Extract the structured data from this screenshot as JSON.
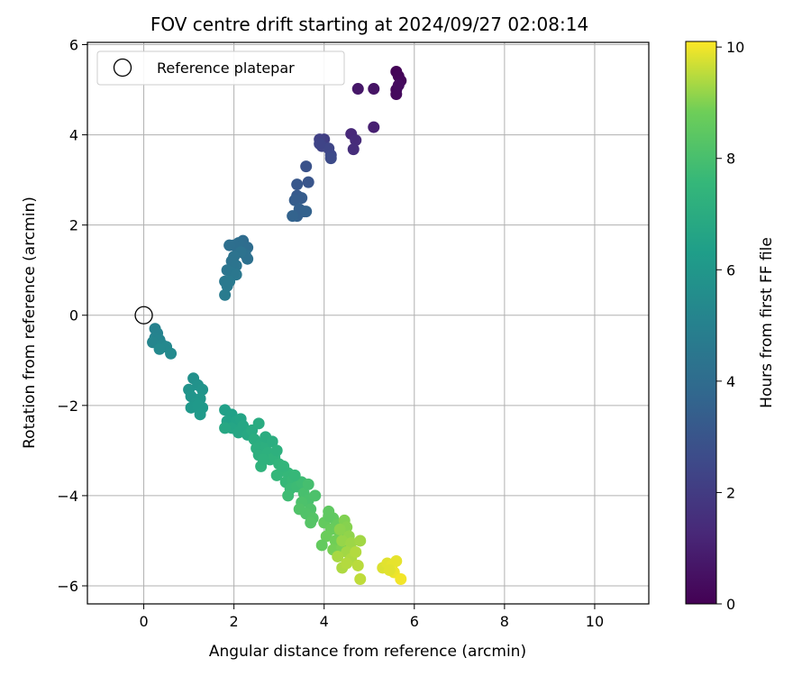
{
  "chart_data": {
    "type": "scatter",
    "title": "FOV centre drift starting at 2024/09/27 02:08:14",
    "xlabel": "Angular distance from reference (arcmin)",
    "ylabel": "Rotation from reference (arcmin)",
    "xlim": [
      -1.25,
      11.2
    ],
    "ylim": [
      -6.4,
      6.05
    ],
    "xticks": [
      0,
      2,
      4,
      6,
      8,
      10
    ],
    "yticks": [
      -6,
      -4,
      -2,
      0,
      2,
      4,
      6
    ],
    "grid": true,
    "legend": {
      "position": "upper-left",
      "entries": [
        {
          "label": "Reference platepar",
          "marker": "open-circle",
          "x": 0,
          "y": 0
        }
      ]
    },
    "colorbar": {
      "label": "Hours from first FF file",
      "range": [
        0,
        10.1
      ],
      "ticks": [
        0,
        2,
        4,
        6,
        8,
        10
      ],
      "colormap": "viridis"
    },
    "point_color_value": "hours",
    "points": [
      {
        "x": 5.6,
        "y": 5.4,
        "h": 0.1
      },
      {
        "x": 5.65,
        "y": 5.3,
        "h": 0.15
      },
      {
        "x": 5.7,
        "y": 5.2,
        "h": 0.2
      },
      {
        "x": 5.6,
        "y": 5.0,
        "h": 0.25
      },
      {
        "x": 5.6,
        "y": 4.9,
        "h": 0.3
      },
      {
        "x": 5.65,
        "y": 5.1,
        "h": 0.35
      },
      {
        "x": 5.1,
        "y": 5.02,
        "h": 0.6
      },
      {
        "x": 4.75,
        "y": 5.02,
        "h": 0.7
      },
      {
        "x": 5.1,
        "y": 4.17,
        "h": 1.0
      },
      {
        "x": 4.6,
        "y": 4.02,
        "h": 1.3
      },
      {
        "x": 4.7,
        "y": 3.88,
        "h": 1.4
      },
      {
        "x": 4.65,
        "y": 3.68,
        "h": 1.5
      },
      {
        "x": 4.0,
        "y": 3.9,
        "h": 2.1
      },
      {
        "x": 3.9,
        "y": 3.9,
        "h": 2.2
      },
      {
        "x": 3.95,
        "y": 3.75,
        "h": 2.3
      },
      {
        "x": 4.1,
        "y": 3.7,
        "h": 2.4
      },
      {
        "x": 4.15,
        "y": 3.55,
        "h": 2.5
      },
      {
        "x": 4.15,
        "y": 3.48,
        "h": 2.6
      },
      {
        "x": 3.9,
        "y": 3.8,
        "h": 2.35
      },
      {
        "x": 3.6,
        "y": 3.3,
        "h": 2.9
      },
      {
        "x": 3.65,
        "y": 2.95,
        "h": 3.0
      },
      {
        "x": 3.4,
        "y": 2.9,
        "h": 3.1
      },
      {
        "x": 3.4,
        "y": 2.65,
        "h": 3.2
      },
      {
        "x": 3.5,
        "y": 2.6,
        "h": 3.3
      },
      {
        "x": 3.35,
        "y": 2.55,
        "h": 3.35
      },
      {
        "x": 3.55,
        "y": 2.3,
        "h": 3.4
      },
      {
        "x": 3.4,
        "y": 2.2,
        "h": 3.5
      },
      {
        "x": 3.45,
        "y": 2.35,
        "h": 3.45
      },
      {
        "x": 3.6,
        "y": 2.3,
        "h": 3.55
      },
      {
        "x": 3.3,
        "y": 2.2,
        "h": 3.6
      },
      {
        "x": 2.2,
        "y": 1.65,
        "h": 4.0
      },
      {
        "x": 2.3,
        "y": 1.5,
        "h": 4.05
      },
      {
        "x": 2.1,
        "y": 1.6,
        "h": 4.1
      },
      {
        "x": 2.0,
        "y": 1.55,
        "h": 4.1
      },
      {
        "x": 1.9,
        "y": 1.55,
        "h": 4.15
      },
      {
        "x": 2.25,
        "y": 1.35,
        "h": 4.2
      },
      {
        "x": 2.3,
        "y": 1.25,
        "h": 4.2
      },
      {
        "x": 2.15,
        "y": 1.4,
        "h": 4.25
      },
      {
        "x": 2.0,
        "y": 1.3,
        "h": 4.3
      },
      {
        "x": 1.95,
        "y": 1.2,
        "h": 4.3
      },
      {
        "x": 2.05,
        "y": 1.1,
        "h": 4.35
      },
      {
        "x": 1.85,
        "y": 1.0,
        "h": 4.4
      },
      {
        "x": 1.95,
        "y": 0.95,
        "h": 4.45
      },
      {
        "x": 2.05,
        "y": 0.9,
        "h": 4.5
      },
      {
        "x": 1.8,
        "y": 0.75,
        "h": 4.55
      },
      {
        "x": 1.85,
        "y": 0.65,
        "h": 4.6
      },
      {
        "x": 1.9,
        "y": 0.75,
        "h": 4.6
      },
      {
        "x": 1.8,
        "y": 0.45,
        "h": 4.7
      },
      {
        "x": 0.25,
        "y": -0.3,
        "h": 5.0
      },
      {
        "x": 0.3,
        "y": -0.4,
        "h": 5.05
      },
      {
        "x": 0.25,
        "y": -0.5,
        "h": 5.1
      },
      {
        "x": 0.35,
        "y": -0.55,
        "h": 5.15
      },
      {
        "x": 0.2,
        "y": -0.6,
        "h": 5.2
      },
      {
        "x": 0.4,
        "y": -0.65,
        "h": 5.25
      },
      {
        "x": 0.5,
        "y": -0.7,
        "h": 5.3
      },
      {
        "x": 0.35,
        "y": -0.75,
        "h": 5.35
      },
      {
        "x": 0.6,
        "y": -0.85,
        "h": 5.4
      },
      {
        "x": 1.1,
        "y": -1.4,
        "h": 5.7
      },
      {
        "x": 1.2,
        "y": -1.55,
        "h": 5.75
      },
      {
        "x": 1.0,
        "y": -1.65,
        "h": 5.8
      },
      {
        "x": 1.3,
        "y": -1.65,
        "h": 5.85
      },
      {
        "x": 1.05,
        "y": -1.8,
        "h": 5.9
      },
      {
        "x": 1.25,
        "y": -1.85,
        "h": 5.95
      },
      {
        "x": 1.15,
        "y": -1.95,
        "h": 6.0
      },
      {
        "x": 1.05,
        "y": -2.05,
        "h": 6.05
      },
      {
        "x": 1.3,
        "y": -2.05,
        "h": 6.1
      },
      {
        "x": 1.2,
        "y": -2.0,
        "h": 6.1
      },
      {
        "x": 1.25,
        "y": -2.2,
        "h": 6.15
      },
      {
        "x": 1.8,
        "y": -2.1,
        "h": 6.4
      },
      {
        "x": 1.95,
        "y": -2.2,
        "h": 6.45
      },
      {
        "x": 1.85,
        "y": -2.35,
        "h": 6.5
      },
      {
        "x": 2.05,
        "y": -2.35,
        "h": 6.55
      },
      {
        "x": 2.15,
        "y": -2.3,
        "h": 6.6
      },
      {
        "x": 1.95,
        "y": -2.5,
        "h": 6.65
      },
      {
        "x": 2.2,
        "y": -2.45,
        "h": 6.7
      },
      {
        "x": 2.1,
        "y": -2.6,
        "h": 6.7
      },
      {
        "x": 1.8,
        "y": -2.5,
        "h": 6.75
      },
      {
        "x": 2.3,
        "y": -2.65,
        "h": 6.8
      },
      {
        "x": 2.4,
        "y": -2.55,
        "h": 6.9
      },
      {
        "x": 2.55,
        "y": -2.4,
        "h": 6.95
      },
      {
        "x": 2.45,
        "y": -2.75,
        "h": 7.0
      },
      {
        "x": 2.6,
        "y": -2.85,
        "h": 7.05
      },
      {
        "x": 2.5,
        "y": -2.95,
        "h": 7.1
      },
      {
        "x": 2.7,
        "y": -2.9,
        "h": 7.1
      },
      {
        "x": 2.55,
        "y": -3.1,
        "h": 7.15
      },
      {
        "x": 2.75,
        "y": -3.05,
        "h": 7.2
      },
      {
        "x": 2.8,
        "y": -3.2,
        "h": 7.25
      },
      {
        "x": 2.6,
        "y": -3.35,
        "h": 7.3
      },
      {
        "x": 2.9,
        "y": -3.15,
        "h": 7.3
      },
      {
        "x": 2.7,
        "y": -2.7,
        "h": 7.0
      },
      {
        "x": 2.85,
        "y": -2.8,
        "h": 7.05
      },
      {
        "x": 2.95,
        "y": -3.0,
        "h": 7.2
      },
      {
        "x": 2.65,
        "y": -3.2,
        "h": 7.25
      },
      {
        "x": 3.0,
        "y": -3.3,
        "h": 7.4
      },
      {
        "x": 3.1,
        "y": -3.45,
        "h": 7.45
      },
      {
        "x": 2.95,
        "y": -3.55,
        "h": 7.5
      },
      {
        "x": 3.2,
        "y": -3.5,
        "h": 7.55
      },
      {
        "x": 3.15,
        "y": -3.7,
        "h": 7.6
      },
      {
        "x": 3.3,
        "y": -3.65,
        "h": 7.65
      },
      {
        "x": 3.25,
        "y": -3.85,
        "h": 7.7
      },
      {
        "x": 3.4,
        "y": -3.8,
        "h": 7.75
      },
      {
        "x": 3.2,
        "y": -4.0,
        "h": 7.8
      },
      {
        "x": 3.5,
        "y": -3.7,
        "h": 7.8
      },
      {
        "x": 3.1,
        "y": -3.35,
        "h": 7.45
      },
      {
        "x": 3.35,
        "y": -3.55,
        "h": 7.6
      },
      {
        "x": 3.55,
        "y": -3.95,
        "h": 8.0
      },
      {
        "x": 3.65,
        "y": -4.1,
        "h": 8.05
      },
      {
        "x": 3.5,
        "y": -4.15,
        "h": 8.1
      },
      {
        "x": 3.7,
        "y": -4.3,
        "h": 8.15
      },
      {
        "x": 3.6,
        "y": -4.4,
        "h": 8.2
      },
      {
        "x": 3.75,
        "y": -4.5,
        "h": 8.25
      },
      {
        "x": 3.45,
        "y": -4.3,
        "h": 8.2
      },
      {
        "x": 3.7,
        "y": -4.6,
        "h": 8.3
      },
      {
        "x": 3.8,
        "y": -4.0,
        "h": 8.1
      },
      {
        "x": 3.65,
        "y": -3.75,
        "h": 7.95
      },
      {
        "x": 4.1,
        "y": -4.35,
        "h": 8.5
      },
      {
        "x": 4.2,
        "y": -4.5,
        "h": 8.55
      },
      {
        "x": 4.0,
        "y": -4.6,
        "h": 8.6
      },
      {
        "x": 4.3,
        "y": -4.65,
        "h": 8.65
      },
      {
        "x": 4.15,
        "y": -4.75,
        "h": 8.7
      },
      {
        "x": 4.05,
        "y": -4.9,
        "h": 8.75
      },
      {
        "x": 4.35,
        "y": -4.85,
        "h": 8.8
      },
      {
        "x": 4.25,
        "y": -5.0,
        "h": 8.85
      },
      {
        "x": 3.95,
        "y": -5.1,
        "h": 8.6
      },
      {
        "x": 4.2,
        "y": -5.2,
        "h": 8.9
      },
      {
        "x": 4.4,
        "y": -5.15,
        "h": 8.95
      },
      {
        "x": 4.1,
        "y": -4.45,
        "h": 8.5
      },
      {
        "x": 4.45,
        "y": -4.55,
        "h": 9.0
      },
      {
        "x": 4.5,
        "y": -4.7,
        "h": 9.05
      },
      {
        "x": 4.35,
        "y": -4.75,
        "h": 9.1
      },
      {
        "x": 4.55,
        "y": -4.9,
        "h": 9.15
      },
      {
        "x": 4.4,
        "y": -5.0,
        "h": 9.2
      },
      {
        "x": 4.6,
        "y": -5.05,
        "h": 9.25
      },
      {
        "x": 4.5,
        "y": -5.25,
        "h": 9.3
      },
      {
        "x": 4.3,
        "y": -5.35,
        "h": 9.35
      },
      {
        "x": 4.6,
        "y": -5.4,
        "h": 9.4
      },
      {
        "x": 4.4,
        "y": -5.6,
        "h": 9.4
      },
      {
        "x": 4.7,
        "y": -5.25,
        "h": 9.45
      },
      {
        "x": 4.8,
        "y": -5.0,
        "h": 9.3
      },
      {
        "x": 4.75,
        "y": -5.55,
        "h": 9.5
      },
      {
        "x": 4.8,
        "y": -5.85,
        "h": 9.55
      },
      {
        "x": 4.5,
        "y": -5.5,
        "h": 9.45
      },
      {
        "x": 5.3,
        "y": -5.6,
        "h": 9.8
      },
      {
        "x": 5.4,
        "y": -5.5,
        "h": 9.85
      },
      {
        "x": 5.5,
        "y": -5.55,
        "h": 9.9
      },
      {
        "x": 5.6,
        "y": -5.45,
        "h": 9.9
      },
      {
        "x": 5.55,
        "y": -5.7,
        "h": 9.95
      },
      {
        "x": 5.7,
        "y": -5.85,
        "h": 10.0
      },
      {
        "x": 5.45,
        "y": -5.65,
        "h": 9.85
      }
    ]
  }
}
